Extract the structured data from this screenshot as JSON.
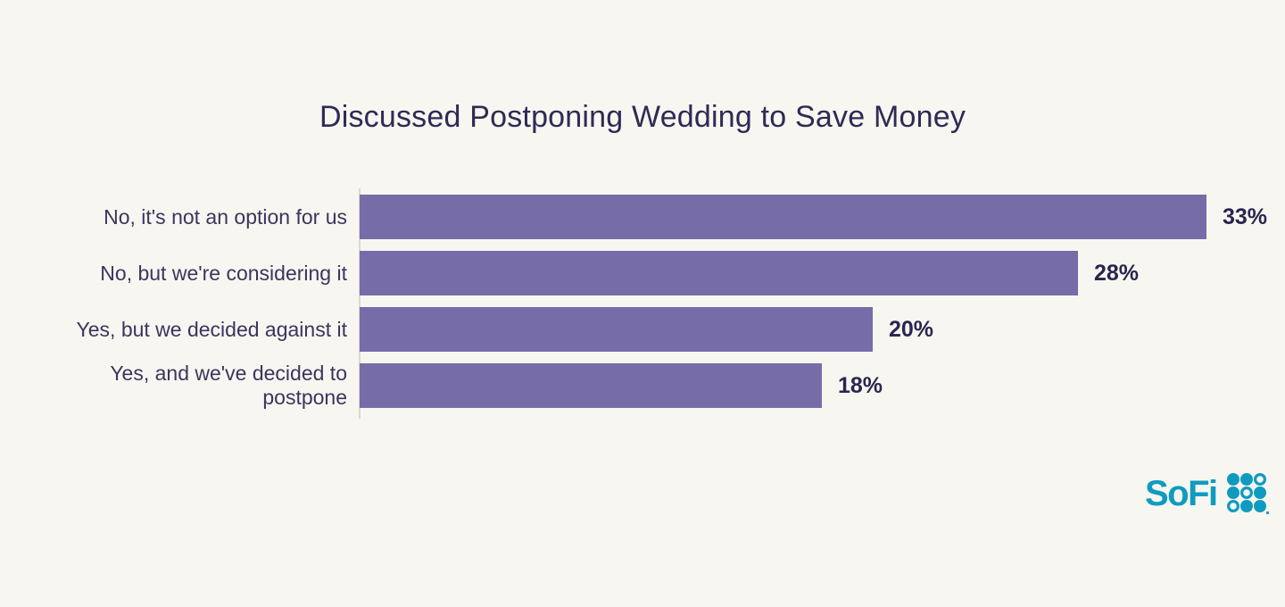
{
  "page": {
    "background": "#f8f6f0"
  },
  "chart_data": {
    "type": "bar",
    "orientation": "horizontal",
    "title": "Discussed Postponing Wedding to Save Money",
    "categories": [
      "No, it's not an option for us",
      "No, but we're considering it",
      "Yes, but we decided against it",
      "Yes, and we've decided to postpone"
    ],
    "category_display_lines": [
      [
        "No, it's not an option for us"
      ],
      [
        "No, but we're considering it"
      ],
      [
        "Yes, but we decided against it"
      ],
      [
        "Yes, and we've decided to",
        "postpone"
      ]
    ],
    "values": [
      33,
      28,
      20,
      18
    ],
    "value_labels": [
      "33%",
      "28%",
      "20%",
      "18%"
    ],
    "xlim": [
      0,
      33
    ],
    "grid": false,
    "legend": false,
    "xlabel": "",
    "ylabel": "",
    "bar_color": "#766da8",
    "title_color": "#2f2a55",
    "category_label_color": "#3b355f",
    "value_label_color": "#2a2550",
    "axis_line_color": "#dcd8d0"
  },
  "branding": {
    "logo_text": "SoFi",
    "logo_color": "#0f9bc0",
    "dot_grid": [
      [
        "filled",
        "filled",
        "outline"
      ],
      [
        "filled",
        "outline",
        "filled"
      ],
      [
        "outline",
        "filled",
        "filled"
      ]
    ]
  }
}
